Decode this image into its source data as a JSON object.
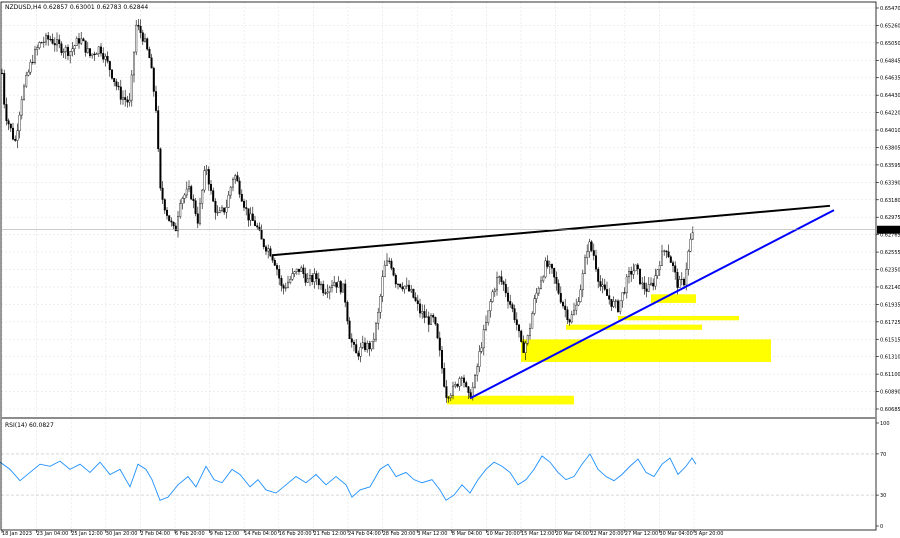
{
  "chart_data": {
    "type": "candlestick",
    "header": "NZDUSD,H4  0.62857 0.63001 0.62783 0.62844",
    "price_axis": {
      "ylim": [
        0.60685,
        0.6547
      ],
      "ticks": [
        "0.65470",
        "0.65260",
        "0.65050",
        "0.64845",
        "0.64635",
        "0.64430",
        "0.64220",
        "0.64010",
        "0.63805",
        "0.63595",
        "0.63390",
        "0.63180",
        "0.62975",
        "0.62765",
        "0.62555",
        "0.62350",
        "0.62140",
        "0.61935",
        "0.61725",
        "0.61515",
        "0.61310",
        "0.61100",
        "0.60890",
        "0.60685"
      ],
      "current_price": "0.62844"
    },
    "time_axis": {
      "labels": [
        "18 Jan 2023",
        "23 Jan 04:00",
        "25 Jan 12:00",
        "30 Jan 20:00",
        "2 Feb 04:00",
        "6 Feb 20:00",
        "9 Feb 12:00",
        "14 Feb 04:00",
        "16 Feb 20:00",
        "21 Feb 12:00",
        "24 Feb 04:00",
        "28 Feb 20:00",
        "3 Mar 12:00",
        "8 Mar 04:00",
        "10 Mar 20:00",
        "15 Mar 12:00",
        "20 Mar 04:00",
        "22 Mar 20:00",
        "27 Mar 12:00",
        "30 Mar 04:00",
        "3 Apr 20:00"
      ]
    },
    "price_path": [
      [
        0,
        0.6495
      ],
      [
        5,
        0.642
      ],
      [
        15,
        0.6385
      ],
      [
        22,
        0.644
      ],
      [
        32,
        0.648
      ],
      [
        40,
        0.65
      ],
      [
        50,
        0.6505
      ],
      [
        60,
        0.6495
      ],
      [
        70,
        0.649
      ],
      [
        80,
        0.6505
      ],
      [
        90,
        0.6485
      ],
      [
        100,
        0.6495
      ],
      [
        110,
        0.647
      ],
      [
        120,
        0.644
      ],
      [
        130,
        0.643
      ],
      [
        136,
        0.652
      ],
      [
        142,
        0.651
      ],
      [
        150,
        0.648
      ],
      [
        156,
        0.6425
      ],
      [
        160,
        0.633
      ],
      [
        168,
        0.63
      ],
      [
        175,
        0.628
      ],
      [
        180,
        0.632
      ],
      [
        190,
        0.633
      ],
      [
        198,
        0.6295
      ],
      [
        206,
        0.636
      ],
      [
        212,
        0.632
      ],
      [
        218,
        0.63
      ],
      [
        226,
        0.631
      ],
      [
        234,
        0.635
      ],
      [
        240,
        0.633
      ],
      [
        248,
        0.63
      ],
      [
        256,
        0.629
      ],
      [
        262,
        0.627
      ],
      [
        270,
        0.626
      ],
      [
        276,
        0.6245
      ],
      [
        282,
        0.6215
      ],
      [
        292,
        0.623
      ],
      [
        300,
        0.624
      ],
      [
        308,
        0.6225
      ],
      [
        316,
        0.623
      ],
      [
        324,
        0.6215
      ],
      [
        334,
        0.6225
      ],
      [
        344,
        0.6215
      ],
      [
        350,
        0.616
      ],
      [
        356,
        0.614
      ],
      [
        364,
        0.615
      ],
      [
        372,
        0.615
      ],
      [
        378,
        0.6185
      ],
      [
        384,
        0.624
      ],
      [
        390,
        0.625
      ],
      [
        396,
        0.6225
      ],
      [
        404,
        0.622
      ],
      [
        412,
        0.621
      ],
      [
        420,
        0.619
      ],
      [
        428,
        0.618
      ],
      [
        434,
        0.618
      ],
      [
        440,
        0.614
      ],
      [
        446,
        0.6095
      ],
      [
        454,
        0.61
      ],
      [
        462,
        0.612
      ],
      [
        468,
        0.609
      ],
      [
        474,
        0.6105
      ],
      [
        480,
        0.6145
      ],
      [
        486,
        0.6175
      ],
      [
        492,
        0.621
      ],
      [
        498,
        0.623
      ],
      [
        504,
        0.622
      ],
      [
        510,
        0.62
      ],
      [
        516,
        0.618
      ],
      [
        522,
        0.6145
      ],
      [
        528,
        0.616
      ],
      [
        534,
        0.62
      ],
      [
        540,
        0.6225
      ],
      [
        546,
        0.6245
      ],
      [
        552,
        0.6235
      ],
      [
        558,
        0.6215
      ],
      [
        564,
        0.6195
      ],
      [
        570,
        0.618
      ],
      [
        576,
        0.6195
      ],
      [
        582,
        0.6225
      ],
      [
        588,
        0.627
      ],
      [
        594,
        0.6255
      ],
      [
        600,
        0.622
      ],
      [
        606,
        0.621
      ],
      [
        612,
        0.62
      ],
      [
        618,
        0.6195
      ],
      [
        624,
        0.6215
      ],
      [
        630,
        0.6235
      ],
      [
        636,
        0.624
      ],
      [
        642,
        0.622
      ],
      [
        648,
        0.6215
      ],
      [
        654,
        0.6225
      ],
      [
        660,
        0.625
      ],
      [
        666,
        0.6265
      ],
      [
        672,
        0.6245
      ],
      [
        678,
        0.622
      ],
      [
        684,
        0.6225
      ],
      [
        690,
        0.627
      ],
      [
        695,
        0.6284
      ]
    ],
    "annotations": {
      "resistance_line": {
        "color": "#000000",
        "from": [
          "16 Feb 20:00",
          0.6255
        ],
        "to": [
          "right end",
          0.6312
        ]
      },
      "support_line": {
        "color": "#0000ff",
        "from": [
          "8 Mar 04:00",
          0.609
        ],
        "to": [
          "right end",
          0.6307
        ]
      },
      "zones_color": "#ffff00",
      "zones": [
        {
          "low": 0.6083,
          "high": 0.6093
        },
        {
          "low": 0.6132,
          "high": 0.6158
        },
        {
          "low": 0.6169,
          "high": 0.6175
        },
        {
          "low": 0.618,
          "high": 0.6185
        },
        {
          "low": 0.62,
          "high": 0.621
        }
      ]
    },
    "rsi": {
      "label": "RSI(14) 60.0827",
      "ticks": [
        "100",
        "70",
        "30",
        "0"
      ],
      "ylim": [
        0,
        100
      ],
      "levels": [
        70,
        30
      ],
      "color": "#1e90ff",
      "path": [
        [
          0,
          62
        ],
        [
          10,
          55
        ],
        [
          20,
          44
        ],
        [
          30,
          52
        ],
        [
          40,
          60
        ],
        [
          50,
          58
        ],
        [
          60,
          63
        ],
        [
          70,
          55
        ],
        [
          80,
          60
        ],
        [
          90,
          52
        ],
        [
          100,
          62
        ],
        [
          110,
          50
        ],
        [
          120,
          55
        ],
        [
          130,
          38
        ],
        [
          138,
          60
        ],
        [
          146,
          55
        ],
        [
          152,
          45
        ],
        [
          160,
          25
        ],
        [
          168,
          28
        ],
        [
          178,
          40
        ],
        [
          188,
          48
        ],
        [
          196,
          38
        ],
        [
          206,
          58
        ],
        [
          214,
          45
        ],
        [
          222,
          42
        ],
        [
          232,
          55
        ],
        [
          240,
          50
        ],
        [
          250,
          38
        ],
        [
          258,
          45
        ],
        [
          266,
          35
        ],
        [
          276,
          32
        ],
        [
          286,
          40
        ],
        [
          296,
          48
        ],
        [
          306,
          42
        ],
        [
          316,
          50
        ],
        [
          326,
          40
        ],
        [
          336,
          48
        ],
        [
          346,
          40
        ],
        [
          352,
          28
        ],
        [
          360,
          35
        ],
        [
          370,
          38
        ],
        [
          380,
          55
        ],
        [
          388,
          60
        ],
        [
          396,
          48
        ],
        [
          406,
          52
        ],
        [
          414,
          45
        ],
        [
          422,
          42
        ],
        [
          432,
          45
        ],
        [
          440,
          35
        ],
        [
          446,
          25
        ],
        [
          454,
          30
        ],
        [
          462,
          40
        ],
        [
          470,
          32
        ],
        [
          478,
          45
        ],
        [
          486,
          55
        ],
        [
          494,
          62
        ],
        [
          502,
          58
        ],
        [
          510,
          52
        ],
        [
          518,
          40
        ],
        [
          526,
          45
        ],
        [
          534,
          55
        ],
        [
          542,
          68
        ],
        [
          550,
          62
        ],
        [
          558,
          52
        ],
        [
          566,
          45
        ],
        [
          574,
          48
        ],
        [
          582,
          60
        ],
        [
          590,
          70
        ],
        [
          598,
          55
        ],
        [
          606,
          48
        ],
        [
          614,
          44
        ],
        [
          622,
          50
        ],
        [
          630,
          58
        ],
        [
          638,
          65
        ],
        [
          646,
          52
        ],
        [
          654,
          48
        ],
        [
          662,
          60
        ],
        [
          670,
          66
        ],
        [
          678,
          50
        ],
        [
          686,
          58
        ],
        [
          692,
          66
        ],
        [
          696,
          60
        ]
      ]
    }
  }
}
